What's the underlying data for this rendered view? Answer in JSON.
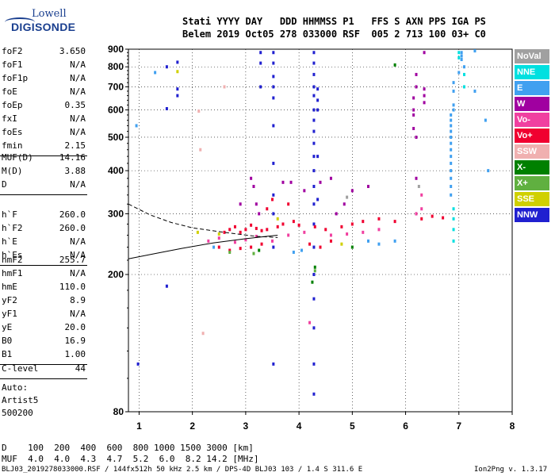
{
  "logo": {
    "line1": "Lowell",
    "line2": "DIGISONDE"
  },
  "header": {
    "line1": "Stati YYYY DAY   DDD HHMMSS P1   FFS S AXN PPS IGA PS",
    "line2": "Belem 2019 Oct05 278 033000 RSF  005 2 713 100 03+ C0"
  },
  "params_a": [
    {
      "k": "foF2",
      "v": "3.650"
    },
    {
      "k": "foF1",
      "v": "N/A"
    },
    {
      "k": "foF1p",
      "v": "N/A"
    },
    {
      "k": "foE",
      "v": "N/A"
    },
    {
      "k": "foEp",
      "v": "0.35"
    },
    {
      "k": "fxI",
      "v": "N/A"
    },
    {
      "k": "foEs",
      "v": "N/A"
    },
    {
      "k": "fmin",
      "v": "2.15"
    }
  ],
  "params_b": [
    {
      "k": "MUF(D)",
      "v": "14.16"
    },
    {
      "k": "M(D)",
      "v": "3.88"
    },
    {
      "k": "D",
      "v": "N/A"
    }
  ],
  "params_c": [
    {
      "k": "h`F",
      "v": "260.0"
    },
    {
      "k": "h`F2",
      "v": "260.0"
    },
    {
      "k": "h`E",
      "v": "N/A"
    },
    {
      "k": "h`Es",
      "v": "N/A"
    }
  ],
  "params_d": [
    {
      "k": "hmF2",
      "v": "255.7"
    },
    {
      "k": "hmF1",
      "v": "N/A"
    },
    {
      "k": "hmE",
      "v": "110.0"
    },
    {
      "k": "yF2",
      "v": "8.9"
    },
    {
      "k": "yF1",
      "v": "N/A"
    },
    {
      "k": "yE",
      "v": "20.0"
    },
    {
      "k": "B0",
      "v": "16.9"
    },
    {
      "k": "B1",
      "v": "1.00"
    }
  ],
  "params_e": [
    {
      "k": "C-level",
      "v": "44"
    }
  ],
  "auto": {
    "l1": "Auto:",
    "l2": "Artist5",
    "l3": "500200"
  },
  "bottom": {
    "d_line": "D    100  200  400  600  800 1000 1500 3000 [km]",
    "muf_line": "MUF  4.0  4.0  4.3  4.7  5.2  6.0  8.2 14.2 [MHz]"
  },
  "footer": {
    "left": "BLJ03_2019278033000.RSF / 144fx512h 50 kHz 2.5 km / DPS-4D BLJ03 103 / 1.4 S 311.6 E",
    "right": "Ion2Png v. 1.3.17"
  },
  "legend": [
    {
      "label": "NoVal",
      "color": "#a0a0a0"
    },
    {
      "label": "NNE",
      "color": "#00e0e0"
    },
    {
      "label": "E",
      "color": "#40a0f0"
    },
    {
      "label": "W",
      "color": "#a000a0"
    },
    {
      "label": "Vo-",
      "color": "#f040a0"
    },
    {
      "label": "Vo+",
      "color": "#f00030"
    },
    {
      "label": "SSW",
      "color": "#f0b0b0"
    },
    {
      "label": "X-",
      "color": "#008000"
    },
    {
      "label": "X+",
      "color": "#60b040"
    },
    {
      "label": "SSE",
      "color": "#d0d000"
    },
    {
      "label": "NNW",
      "color": "#2020d0"
    }
  ],
  "chart_data": {
    "type": "scatter",
    "title": "",
    "xlabel": "",
    "ylabel": "",
    "xlim": [
      0.8,
      8.0
    ],
    "ylim": [
      80,
      900
    ],
    "y_scale": "log",
    "x_ticks": [
      1,
      2,
      3,
      4,
      5,
      6,
      7,
      8
    ],
    "y_ticks": [
      80,
      200,
      300,
      400,
      500,
      600,
      700,
      800,
      900
    ],
    "grid": true,
    "series": [
      {
        "name": "NNW",
        "color": "#2020d0",
        "points": [
          [
            3.28,
            880
          ],
          [
            3.28,
            820
          ],
          [
            3.28,
            700
          ],
          [
            3.52,
            880
          ],
          [
            3.52,
            820
          ],
          [
            3.52,
            750
          ],
          [
            3.52,
            700
          ],
          [
            3.52,
            650
          ],
          [
            3.52,
            540
          ],
          [
            3.52,
            420
          ],
          [
            3.52,
            340
          ],
          [
            3.52,
            300
          ],
          [
            3.52,
            240
          ],
          [
            3.52,
            110
          ],
          [
            4.28,
            880
          ],
          [
            4.28,
            820
          ],
          [
            4.28,
            760
          ],
          [
            4.28,
            700
          ],
          [
            4.28,
            660
          ],
          [
            4.28,
            600
          ],
          [
            4.28,
            560
          ],
          [
            4.28,
            520
          ],
          [
            4.28,
            480
          ],
          [
            4.28,
            440
          ],
          [
            4.28,
            400
          ],
          [
            4.28,
            360
          ],
          [
            4.28,
            320
          ],
          [
            4.28,
            280
          ],
          [
            4.28,
            240
          ],
          [
            4.28,
            200
          ],
          [
            4.28,
            170
          ],
          [
            4.28,
            140
          ],
          [
            4.28,
            110
          ],
          [
            4.28,
            90
          ],
          [
            4.35,
            690
          ],
          [
            4.35,
            640
          ],
          [
            4.35,
            600
          ],
          [
            4.35,
            440
          ],
          [
            4.35,
            330
          ],
          [
            1.52,
            605
          ],
          [
            1.52,
            185
          ],
          [
            1.72,
            825
          ],
          [
            1.52,
            800
          ],
          [
            1.72,
            690
          ],
          [
            1.72,
            660
          ],
          [
            0.98,
            110
          ]
        ]
      },
      {
        "name": "W",
        "color": "#a000a0",
        "points": [
          [
            6.35,
            880
          ],
          [
            6.35,
            690
          ],
          [
            6.35,
            660
          ],
          [
            6.35,
            630
          ],
          [
            6.2,
            760
          ],
          [
            6.2,
            700
          ],
          [
            6.15,
            650
          ],
          [
            6.15,
            600
          ],
          [
            6.15,
            580
          ],
          [
            6.15,
            530
          ],
          [
            6.2,
            500
          ],
          [
            6.2,
            380
          ],
          [
            6.2,
            300
          ],
          [
            5.3,
            360
          ],
          [
            5.0,
            350
          ],
          [
            4.85,
            320
          ],
          [
            4.6,
            380
          ],
          [
            4.1,
            350
          ],
          [
            3.85,
            370
          ],
          [
            3.7,
            370
          ],
          [
            3.15,
            360
          ],
          [
            3.2,
            320
          ],
          [
            3.25,
            300
          ],
          [
            2.9,
            320
          ],
          [
            3.1,
            380
          ],
          [
            4.4,
            370
          ],
          [
            4.7,
            300
          ]
        ]
      },
      {
        "name": "E",
        "color": "#40a0f0",
        "points": [
          [
            6.9,
            720
          ],
          [
            6.9,
            680
          ],
          [
            6.9,
            620
          ],
          [
            6.9,
            600
          ],
          [
            6.85,
            580
          ],
          [
            6.85,
            560
          ],
          [
            6.85,
            540
          ],
          [
            6.85,
            520
          ],
          [
            6.85,
            500
          ],
          [
            6.85,
            480
          ],
          [
            6.85,
            460
          ],
          [
            6.85,
            440
          ],
          [
            6.85,
            420
          ],
          [
            6.85,
            400
          ],
          [
            6.85,
            380
          ],
          [
            6.85,
            360
          ],
          [
            6.85,
            340
          ],
          [
            7.05,
            880
          ],
          [
            7.05,
            860
          ],
          [
            7.05,
            840
          ],
          [
            7.1,
            800
          ],
          [
            7.0,
            770
          ],
          [
            7.3,
            890
          ],
          [
            7.3,
            680
          ],
          [
            7.5,
            560
          ],
          [
            7.55,
            400
          ],
          [
            0.95,
            540
          ],
          [
            1.3,
            770
          ],
          [
            4.05,
            235
          ],
          [
            3.9,
            232
          ],
          [
            2.4,
            240
          ],
          [
            5.3,
            250
          ],
          [
            5.5,
            245
          ],
          [
            5.8,
            250
          ]
        ]
      },
      {
        "name": "NNE",
        "color": "#00e0e0",
        "points": [
          [
            6.9,
            310
          ],
          [
            6.9,
            290
          ],
          [
            6.9,
            270
          ],
          [
            6.9,
            250
          ],
          [
            7.1,
            700
          ],
          [
            7.1,
            760
          ],
          [
            7.0,
            880
          ],
          [
            7.0,
            850
          ]
        ]
      },
      {
        "name": "Vo+",
        "color": "#f00030",
        "points": [
          [
            2.6,
            265
          ],
          [
            2.7,
            270
          ],
          [
            2.8,
            275
          ],
          [
            2.9,
            265
          ],
          [
            3.0,
            270
          ],
          [
            3.1,
            278
          ],
          [
            3.2,
            272
          ],
          [
            3.3,
            268
          ],
          [
            3.4,
            270
          ],
          [
            3.6,
            275
          ],
          [
            3.7,
            280
          ],
          [
            3.9,
            285
          ],
          [
            4.0,
            278
          ],
          [
            4.3,
            275
          ],
          [
            4.5,
            270
          ],
          [
            4.8,
            275
          ],
          [
            5.0,
            280
          ],
          [
            5.2,
            285
          ],
          [
            5.5,
            290
          ],
          [
            5.8,
            285
          ],
          [
            6.3,
            290
          ],
          [
            6.5,
            295
          ],
          [
            6.7,
            292
          ],
          [
            2.5,
            240
          ],
          [
            2.7,
            235
          ],
          [
            2.9,
            238
          ],
          [
            3.1,
            240
          ],
          [
            3.3,
            245
          ],
          [
            4.2,
            245
          ],
          [
            4.4,
            240
          ],
          [
            4.6,
            250
          ],
          [
            3.5,
            330
          ],
          [
            3.4,
            310
          ],
          [
            3.8,
            320
          ]
        ]
      },
      {
        "name": "Vo-",
        "color": "#f040a0",
        "points": [
          [
            2.3,
            250
          ],
          [
            2.5,
            255
          ],
          [
            2.8,
            248
          ],
          [
            3.0,
            252
          ],
          [
            3.2,
            258
          ],
          [
            3.5,
            250
          ],
          [
            3.8,
            260
          ],
          [
            4.1,
            265
          ],
          [
            4.6,
            260
          ],
          [
            4.9,
            262
          ],
          [
            5.2,
            265
          ],
          [
            5.5,
            270
          ],
          [
            6.2,
            300
          ],
          [
            6.3,
            310
          ],
          [
            6.3,
            340
          ],
          [
            4.2,
            145
          ]
        ]
      },
      {
        "name": "X-",
        "color": "#008000",
        "points": [
          [
            5.8,
            810
          ],
          [
            4.3,
            210
          ],
          [
            4.25,
            190
          ],
          [
            3.25,
            235
          ],
          [
            5.0,
            240
          ]
        ]
      },
      {
        "name": "X+",
        "color": "#60b040",
        "points": [
          [
            4.3,
            205
          ],
          [
            3.15,
            230
          ],
          [
            2.7,
            232
          ]
        ]
      },
      {
        "name": "SSE",
        "color": "#d0d000",
        "points": [
          [
            1.72,
            775
          ],
          [
            2.1,
            265
          ],
          [
            2.5,
            262
          ],
          [
            3.6,
            290
          ],
          [
            4.8,
            245
          ]
        ]
      },
      {
        "name": "SSW",
        "color": "#f0b0b0",
        "points": [
          [
            2.12,
            595
          ],
          [
            2.6,
            700
          ],
          [
            2.2,
            135
          ],
          [
            2.15,
            460
          ]
        ]
      },
      {
        "name": "NoVal",
        "color": "#a0a0a0",
        "points": [
          [
            6.25,
            360
          ],
          [
            4.9,
            335
          ]
        ]
      }
    ],
    "curves": [
      {
        "name": "trace-solid",
        "style": "solid",
        "points": [
          [
            0.8,
            222
          ],
          [
            1.3,
            230
          ],
          [
            1.8,
            238
          ],
          [
            2.4,
            247
          ],
          [
            3.0,
            254
          ],
          [
            3.4,
            258
          ],
          [
            3.6,
            260
          ]
        ]
      },
      {
        "name": "trace-dashed",
        "style": "dashed",
        "points": [
          [
            0.8,
            320
          ],
          [
            1.2,
            298
          ],
          [
            1.6,
            283
          ],
          [
            2.0,
            273
          ],
          [
            2.6,
            265
          ],
          [
            3.2,
            258
          ],
          [
            3.6,
            256
          ]
        ]
      }
    ]
  }
}
